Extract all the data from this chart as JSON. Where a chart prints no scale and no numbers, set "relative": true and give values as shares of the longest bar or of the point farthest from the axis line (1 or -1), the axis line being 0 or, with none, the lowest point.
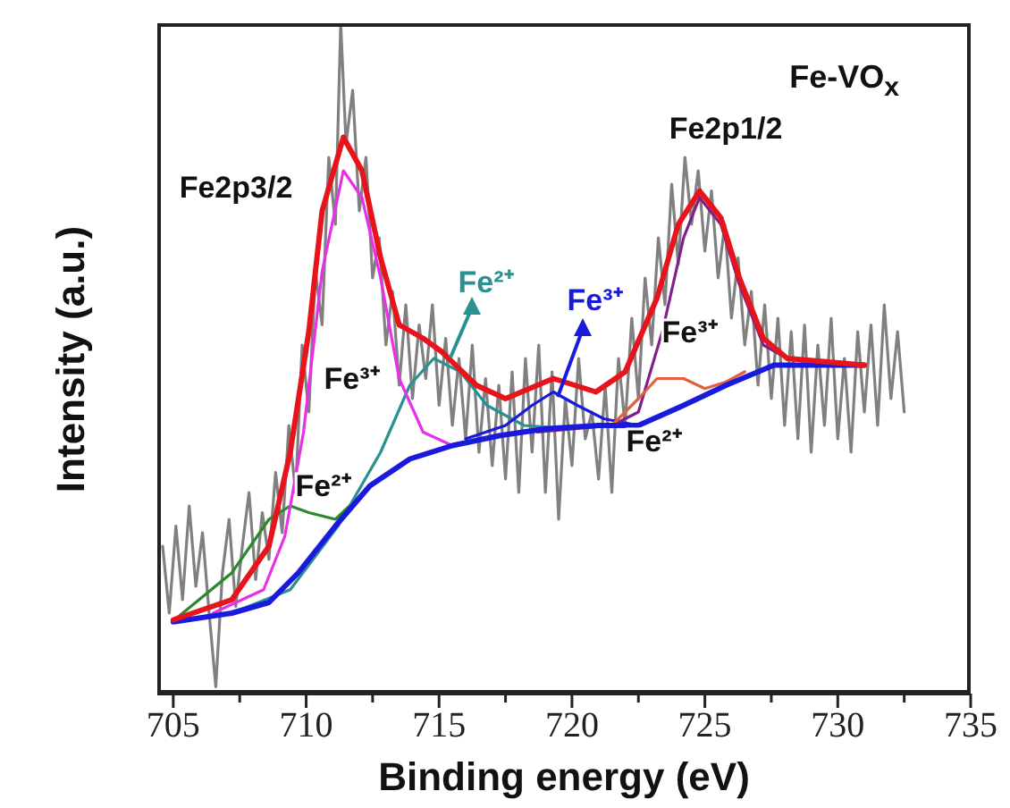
{
  "chart_data": {
    "type": "line",
    "title": "Fe-VO$_{x}$",
    "xlabel": "Binding energy (eV)",
    "ylabel": "Intensity (a.u.)",
    "relative": true,
    "xlim": [
      704.4,
      735
    ],
    "xticks": [
      705,
      {
        "value": 707.5,
        "label": null
      },
      710,
      {
        "value": 712.5,
        "label": null
      },
      715,
      {
        "value": 717.5,
        "label": null
      },
      720,
      {
        "value": 722.5,
        "label": null
      },
      725,
      {
        "value": 727.5,
        "label": null
      },
      730,
      {
        "value": 732.5,
        "label": null
      },
      735
    ],
    "series": [
      {
        "color": "#808080",
        "x": [
          704.6,
          704.85,
          705.1,
          705.35,
          705.6,
          705.85,
          706.1,
          706.35,
          706.6,
          706.85,
          707.1,
          707.35,
          707.6,
          707.85,
          708.1,
          708.35,
          708.6,
          708.85,
          709.1,
          709.35,
          709.6,
          709.85,
          710.1,
          710.35,
          710.6,
          710.85,
          711.1,
          711.3,
          711.5,
          711.75,
          712.0,
          712.25,
          712.5,
          712.75,
          713.0,
          713.25,
          713.5,
          713.75,
          714.0,
          714.25,
          714.5,
          714.75,
          715.0,
          715.25,
          715.5,
          715.75,
          716.0,
          716.25,
          716.5,
          716.75,
          717.0,
          717.25,
          717.5,
          717.75,
          718.0,
          718.25,
          718.5,
          718.75,
          719.0,
          719.25,
          719.5,
          719.75,
          720.0,
          720.25,
          720.5,
          720.75,
          721.0,
          721.25,
          721.5,
          721.75,
          722.0,
          722.25,
          722.5,
          722.75,
          723.0,
          723.25,
          723.5,
          723.75,
          724.0,
          724.25,
          724.5,
          724.75,
          725.0,
          725.25,
          725.5,
          725.75,
          726.0,
          726.25,
          726.5,
          726.75,
          727.0,
          727.25,
          727.5,
          727.75,
          728.0,
          728.25,
          728.5,
          728.75,
          729.0,
          729.25,
          729.5,
          729.75,
          730.0,
          730.25,
          730.5,
          730.75,
          731.0,
          731.25,
          731.5,
          731.75,
          732.0,
          732.25,
          732.5
        ],
        "values": [
          0.22,
          0.12,
          0.25,
          0.14,
          0.28,
          0.16,
          0.24,
          0.12,
          0.01,
          0.18,
          0.26,
          0.13,
          0.22,
          0.3,
          0.17,
          0.27,
          0.2,
          0.33,
          0.24,
          0.4,
          0.3,
          0.52,
          0.42,
          0.63,
          0.55,
          0.8,
          0.7,
          1.0,
          0.82,
          0.9,
          0.72,
          0.8,
          0.62,
          0.68,
          0.52,
          0.6,
          0.46,
          0.58,
          0.44,
          0.55,
          0.47,
          0.58,
          0.43,
          0.53,
          0.4,
          0.5,
          0.38,
          0.52,
          0.36,
          0.47,
          0.34,
          0.46,
          0.32,
          0.48,
          0.3,
          0.5,
          0.36,
          0.52,
          0.3,
          0.48,
          0.26,
          0.44,
          0.34,
          0.5,
          0.38,
          0.42,
          0.32,
          0.46,
          0.3,
          0.5,
          0.4,
          0.56,
          0.44,
          0.62,
          0.52,
          0.68,
          0.58,
          0.76,
          0.64,
          0.8,
          0.7,
          0.78,
          0.66,
          0.75,
          0.62,
          0.7,
          0.56,
          0.65,
          0.52,
          0.6,
          0.46,
          0.58,
          0.44,
          0.56,
          0.4,
          0.54,
          0.38,
          0.55,
          0.36,
          0.52,
          0.4,
          0.56,
          0.38,
          0.5,
          0.36,
          0.54,
          0.42,
          0.55,
          0.4,
          0.58,
          0.44,
          0.54,
          0.42
        ]
      },
      {
        "color": "#2a8a2a",
        "x": [
          705.2,
          707.2,
          708.6,
          709.4,
          710.1,
          711.1,
          711.9,
          712.4
        ],
        "values": [
          0.115,
          0.18,
          0.26,
          0.28,
          0.27,
          0.26,
          0.29,
          0.31
        ]
      },
      {
        "color": "#2a9090",
        "x": [
          707.2,
          709.4,
          711.2,
          712.8,
          713.9,
          714.8,
          715.8,
          716.8,
          718.2,
          720.0
        ],
        "values": [
          0.12,
          0.155,
          0.25,
          0.36,
          0.46,
          0.5,
          0.48,
          0.43,
          0.4,
          0.395
        ]
      },
      {
        "color": "#e830e8",
        "x": [
          706.5,
          708.4,
          709.2,
          709.9,
          710.6,
          711.4,
          712.1,
          712.8,
          713.5,
          714.4,
          715.5
        ],
        "values": [
          0.12,
          0.155,
          0.235,
          0.39,
          0.63,
          0.78,
          0.74,
          0.62,
          0.47,
          0.39,
          0.37
        ]
      },
      {
        "color": "#1a1adc",
        "x": [
          716.0,
          717.5,
          718.5,
          719.3,
          720.2,
          721.2,
          722.5
        ],
        "values": [
          0.38,
          0.4,
          0.43,
          0.45,
          0.43,
          0.41,
          0.4
        ]
      },
      {
        "color": "#80208a",
        "x": [
          718.7,
          721.5,
          722.5,
          723.4,
          724.2,
          724.8,
          725.6,
          726.3,
          727.2,
          728.1,
          731.0
        ],
        "values": [
          0.39,
          0.4,
          0.42,
          0.54,
          0.68,
          0.74,
          0.7,
          0.61,
          0.52,
          0.5,
          0.49
        ]
      },
      {
        "color": "#e06040",
        "x": [
          721.5,
          722.5,
          723.2,
          724.2,
          725.0,
          725.8,
          726.5
        ],
        "values": [
          0.4,
          0.44,
          0.47,
          0.47,
          0.455,
          0.465,
          0.48
        ]
      },
      {
        "color": "#1a1adc",
        "x": [
          705,
          707.2,
          708.6,
          709.7,
          711.1,
          712.4,
          713.9,
          715.5,
          717.3,
          719.0,
          721.0,
          722.5,
          724.2,
          725.8,
          727.6,
          731.0
        ],
        "values": [
          0.107,
          0.12,
          0.136,
          0.18,
          0.25,
          0.31,
          0.35,
          0.37,
          0.385,
          0.395,
          0.4,
          0.4,
          0.43,
          0.46,
          0.49,
          0.49
        ]
      },
      {
        "color": "#e8141c",
        "x": [
          705,
          707.2,
          708.6,
          709.4,
          710.1,
          710.6,
          711.4,
          712.1,
          712.8,
          713.5,
          714.4,
          715.1,
          716.4,
          717.5,
          719.3,
          720.9,
          722.0,
          723.2,
          724.0,
          724.8,
          725.6,
          726.3,
          727.2,
          728.1,
          731.0
        ],
        "values": [
          0.11,
          0.14,
          0.22,
          0.36,
          0.54,
          0.72,
          0.83,
          0.78,
          0.65,
          0.55,
          0.53,
          0.51,
          0.46,
          0.44,
          0.47,
          0.45,
          0.48,
          0.59,
          0.7,
          0.75,
          0.71,
          0.62,
          0.53,
          0.5,
          0.49
        ]
      }
    ],
    "annotations": [
      "Fe2p3/2",
      "Fe2p1/2",
      "Fe³⁺",
      "Fe²⁺",
      "Fe²⁺",
      "Fe³⁺",
      "Fe³⁺",
      "Fe²⁺"
    ]
  }
}
